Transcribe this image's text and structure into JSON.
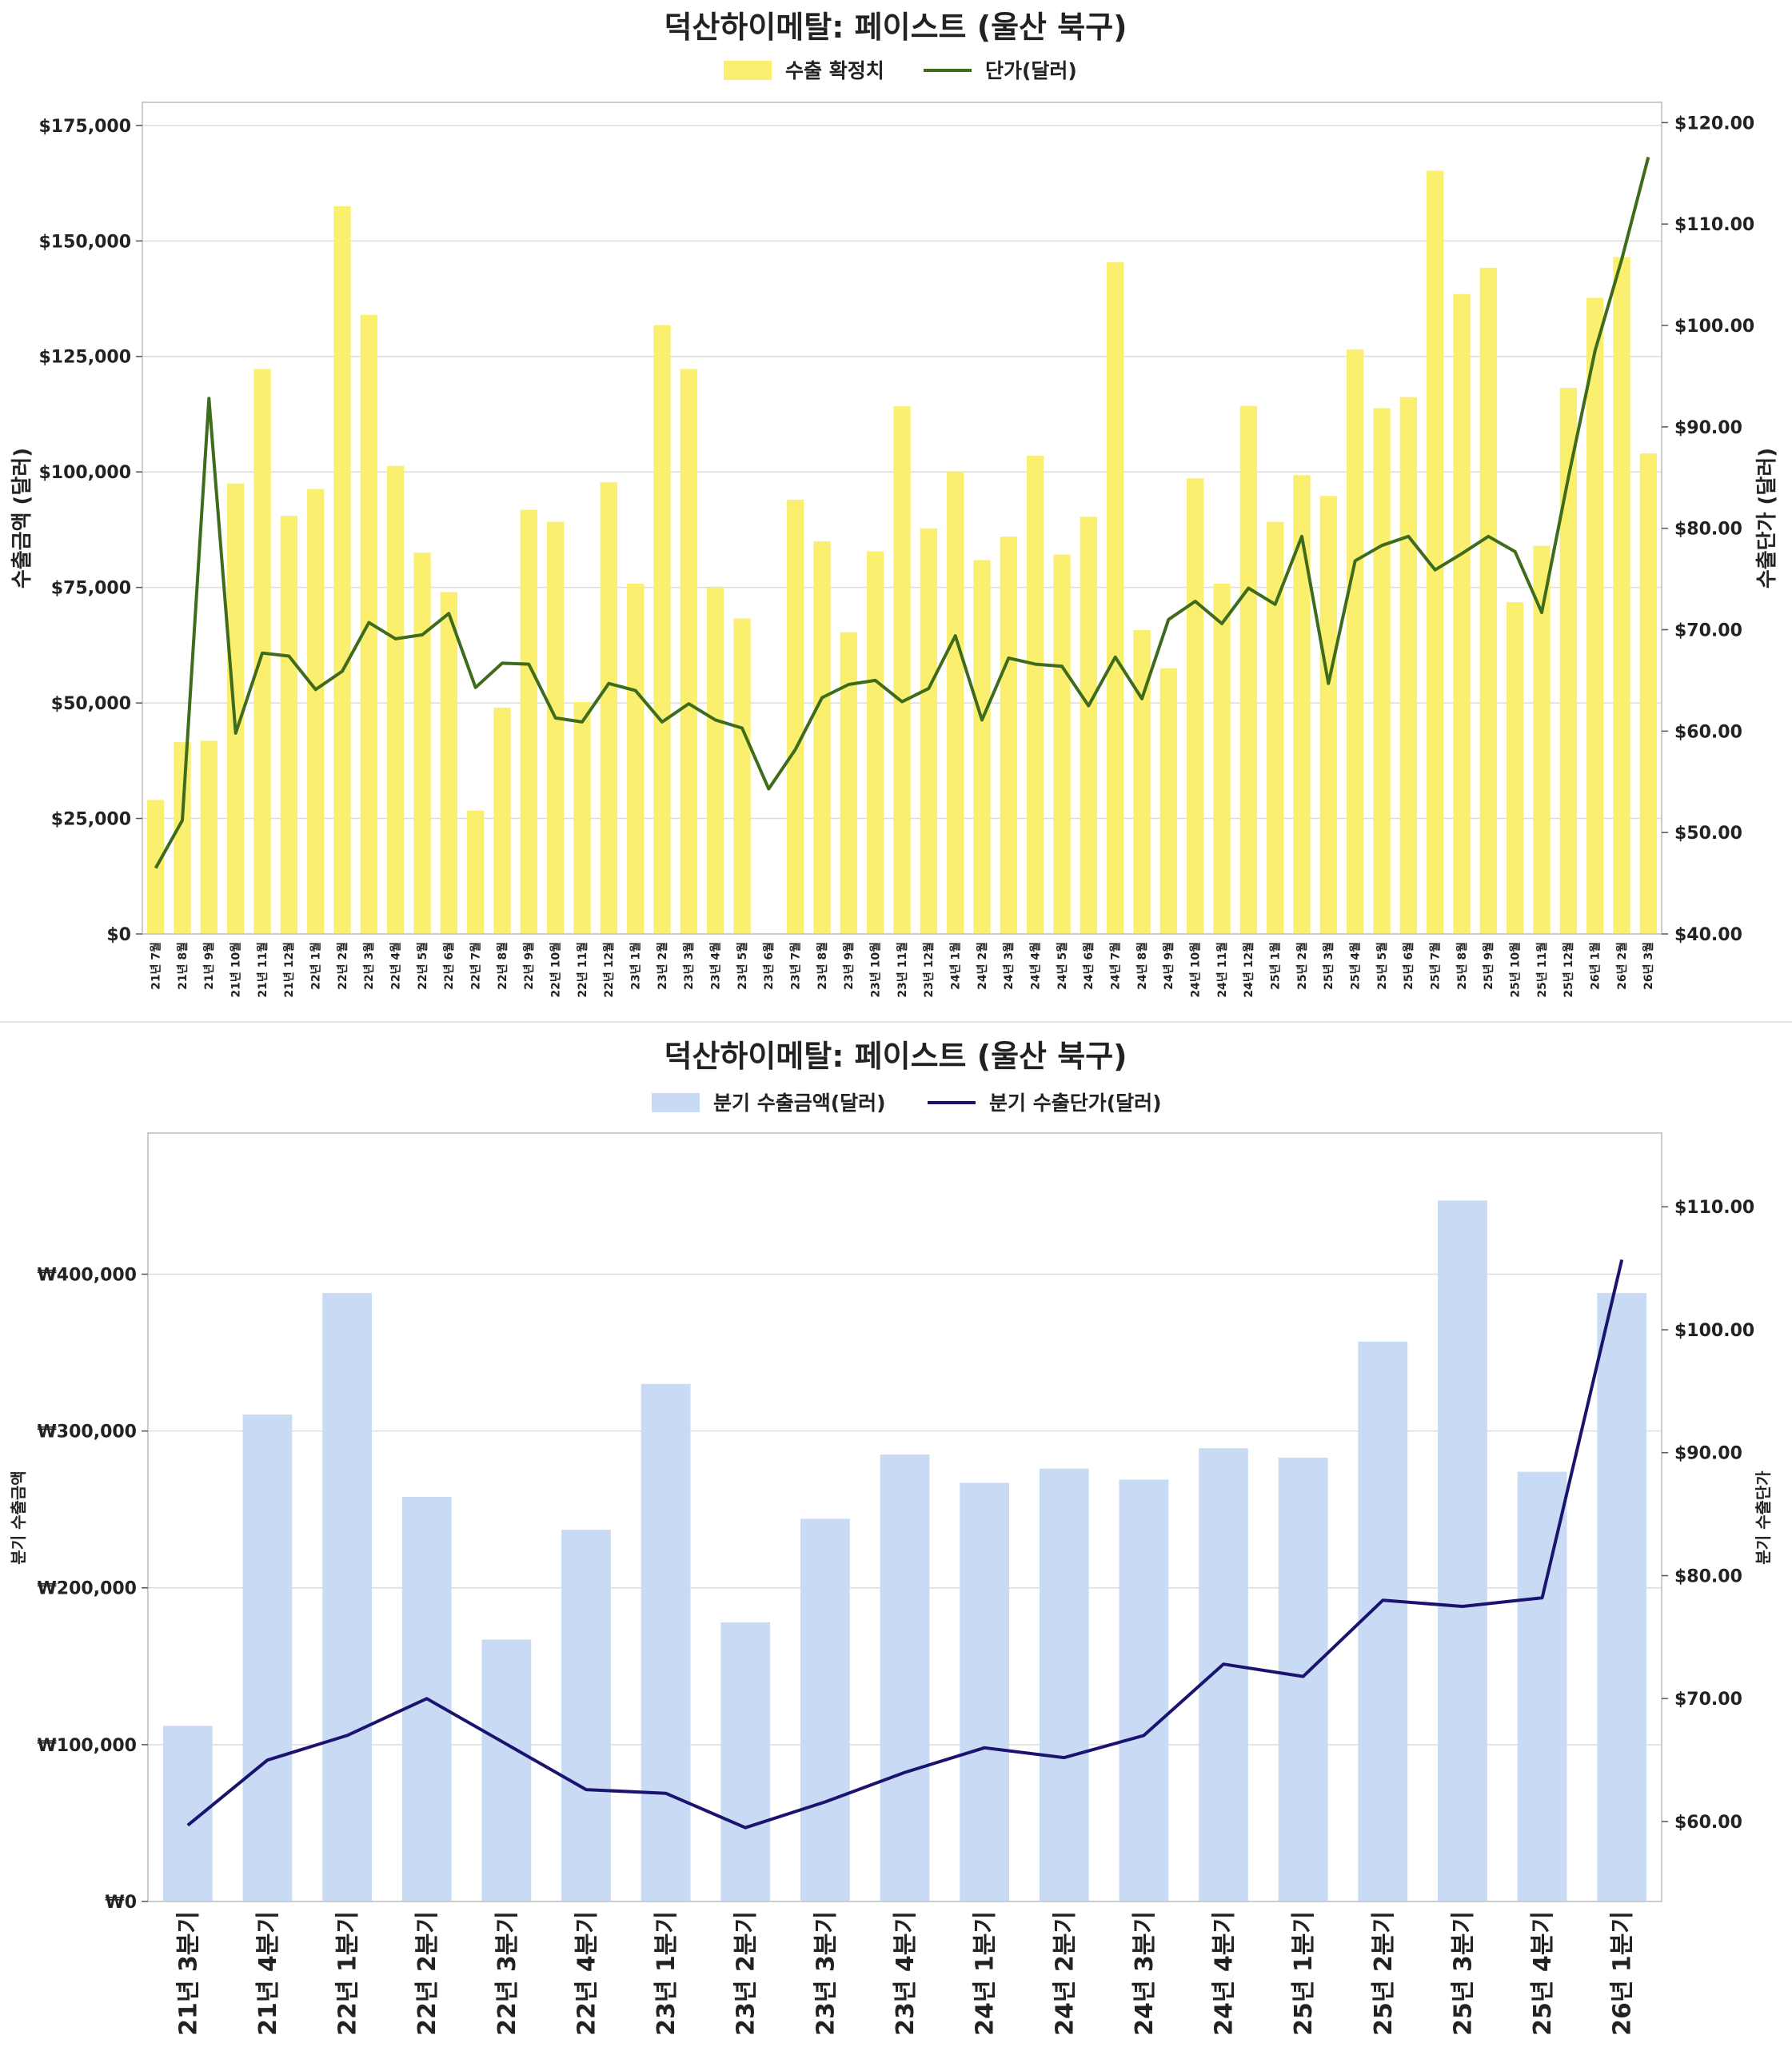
{
  "chart_data": [
    {
      "type": "bar+line",
      "title": "덕산하이메탈: 페이스트 (울산 북구)",
      "legend": {
        "bar_label": "수출 확정치",
        "line_label": "단가(달러)",
        "placement": "top-center"
      },
      "ylabel_left": "수출금액 (달러)",
      "ylabel_right": "수출단가 (달러)",
      "ylim_left": [
        0,
        180000
      ],
      "ylim_right": [
        40,
        122
      ],
      "yticks_left": [
        0,
        25000,
        50000,
        75000,
        100000,
        125000,
        150000,
        175000
      ],
      "yticks_left_labels": [
        "$0",
        "$25,000",
        "$50,000",
        "$75,000",
        "$100,000",
        "$125,000",
        "$150,000",
        "$175,000"
      ],
      "yticks_right": [
        40,
        50,
        60,
        70,
        80,
        90,
        100,
        110,
        120
      ],
      "yticks_right_labels": [
        "$40.00",
        "$50.00",
        "$60.00",
        "$70.00",
        "$80.00",
        "$90.00",
        "$100.00",
        "$110.00",
        "$120.00"
      ],
      "categories": [
        "21년 7월",
        "21년 8월",
        "21년 9월",
        "21년 10월",
        "21년 11월",
        "21년 12월",
        "22년 1월",
        "22년 2월",
        "22년 3월",
        "22년 4월",
        "22년 5월",
        "22년 6월",
        "22년 7월",
        "22년 8월",
        "22년 9월",
        "22년 10월",
        "22년 11월",
        "22년 12월",
        "23년 1월",
        "23년 2월",
        "23년 3월",
        "23년 4월",
        "23년 5월",
        "23년 6월",
        "23년 7월",
        "23년 8월",
        "23년 9월",
        "23년 10월",
        "23년 11월",
        "23년 12월",
        "24년 1월",
        "24년 2월",
        "24년 3월",
        "24년 4월",
        "24년 5월",
        "24년 6월",
        "24년 7월",
        "24년 8월",
        "24년 9월",
        "24년 10월",
        "24년 11월",
        "24년 12월",
        "25년 1월",
        "25년 2월",
        "25년 3월",
        "25년 4월",
        "25년 5월",
        "25년 6월",
        "25년 7월",
        "25년 8월",
        "25년 9월",
        "25년 10월",
        "25년 11월",
        "25년 12월",
        "26년 1월",
        "26년 2월",
        "26년 3월"
      ],
      "bar_values": [
        29000,
        41500,
        41800,
        97500,
        122300,
        90500,
        96300,
        157500,
        134000,
        101300,
        82500,
        74000,
        26700,
        49000,
        91800,
        89200,
        50200,
        97800,
        75800,
        131800,
        122300,
        75000,
        68300,
        0,
        94000,
        85000,
        65300,
        82800,
        114200,
        87800,
        100000,
        80900,
        86000,
        103500,
        82100,
        90300,
        145400,
        65800,
        57500,
        98600,
        75800,
        114300,
        89200,
        99300,
        94800,
        126500,
        113800,
        116200,
        165200,
        138500,
        144200,
        71800,
        84000,
        118200,
        137700,
        146500,
        104000
      ],
      "line_values": [
        46.5,
        51.2,
        92.8,
        59.8,
        67.7,
        67.4,
        64.1,
        65.9,
        70.7,
        69.1,
        69.5,
        71.6,
        64.3,
        66.7,
        66.6,
        61.3,
        60.9,
        64.7,
        64.0,
        60.9,
        62.7,
        61.1,
        60.3,
        54.3,
        58.2,
        63.3,
        64.6,
        65.0,
        62.9,
        64.2,
        69.4,
        61.1,
        67.2,
        66.6,
        66.4,
        62.5,
        67.3,
        63.2,
        71.0,
        72.8,
        70.6,
        74.1,
        72.5,
        79.2,
        64.7,
        76.8,
        78.3,
        79.2,
        75.9,
        77.5,
        79.2,
        77.7,
        71.7,
        85.0,
        97.5,
        106.5,
        116.6
      ],
      "colors": {
        "bar": "#faef6f",
        "line": "#3e6b1c"
      }
    },
    {
      "type": "bar+line",
      "title": "덕산하이메탈: 페이스트 (울산 북구)",
      "legend": {
        "bar_label": "분기 수출금액(달러)",
        "line_label": "분기 수출단가(달러)",
        "placement": "top-center"
      },
      "ylabel_left": "분기 수출금액",
      "ylabel_right": "분기 수출단가",
      "ylim_left": [
        0,
        490000
      ],
      "ylim_right": [
        53.5,
        116
      ],
      "yticks_left": [
        0,
        100000,
        200000,
        300000,
        400000
      ],
      "yticks_left_labels": [
        "₩0",
        "₩100,000",
        "₩200,000",
        "₩300,000",
        "₩400,000"
      ],
      "yticks_right": [
        60,
        70,
        80,
        90,
        100,
        110
      ],
      "yticks_right_labels": [
        "$60.00",
        "$70.00",
        "$80.00",
        "$90.00",
        "$100.00",
        "$110.00"
      ],
      "categories": [
        "21년 3분기",
        "21년 4분기",
        "22년 1분기",
        "22년 2분기",
        "22년 3분기",
        "22년 4분기",
        "23년 1분기",
        "23년 2분기",
        "23년 3분기",
        "23년 4분기",
        "24년 1분기",
        "24년 2분기",
        "24년 3분기",
        "24년 4분기",
        "25년 1분기",
        "25년 2분기",
        "25년 3분기",
        "25년 4분기",
        "26년 1분기"
      ],
      "bar_values": [
        112000,
        310500,
        388000,
        258000,
        167000,
        237000,
        330000,
        178000,
        244000,
        285000,
        267000,
        276000,
        269000,
        289000,
        283000,
        357000,
        447000,
        274000,
        388000
      ],
      "line_values": [
        59.7,
        65.0,
        67.0,
        70.0,
        66.3,
        62.6,
        62.3,
        59.5,
        61.6,
        64.0,
        66.0,
        65.2,
        67.0,
        72.8,
        71.8,
        78.0,
        77.5,
        78.2,
        105.7
      ],
      "colors": {
        "bar": "#c9daf5",
        "line": "#1a1470"
      }
    }
  ]
}
